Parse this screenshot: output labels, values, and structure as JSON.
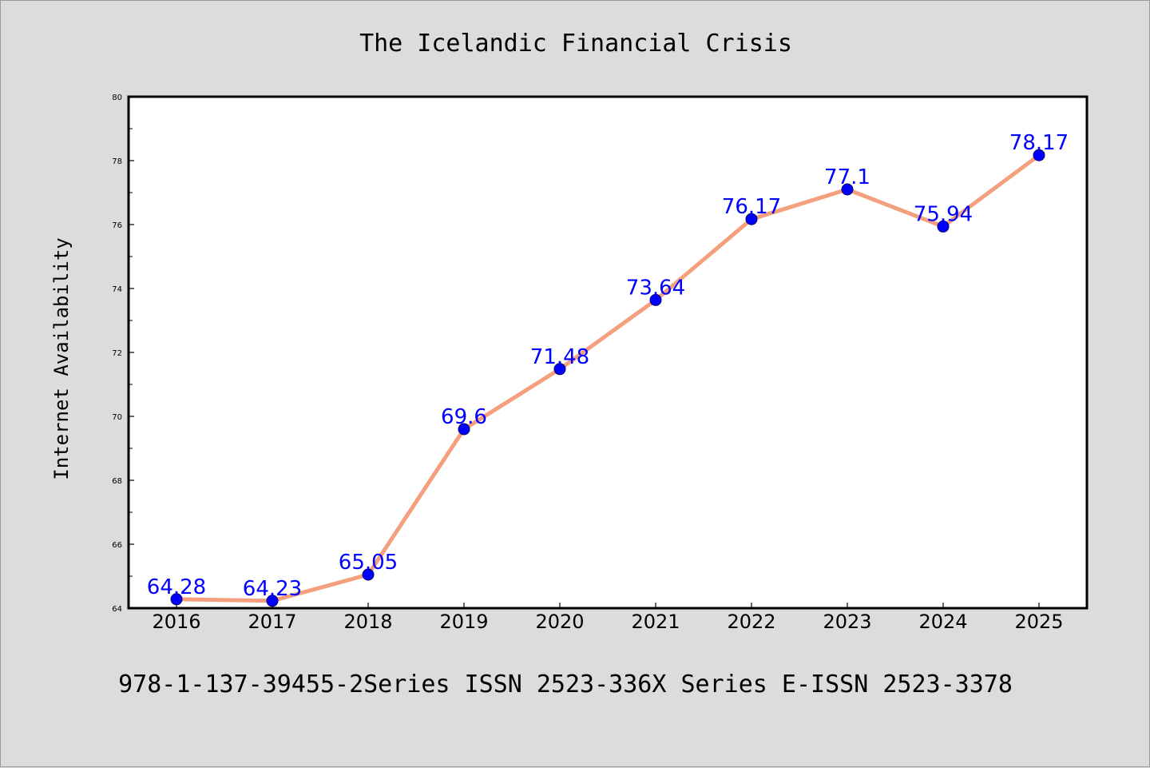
{
  "colors": {
    "background": "#dcdcdc",
    "line": "#f4a07e",
    "marker": "#0000ff",
    "data_label": "#0000ff"
  },
  "footer": "978-1-137-39455-2Series ISSN 2523-336X Series E-ISSN 2523-3378",
  "chart_data": {
    "type": "line",
    "title": "The Icelandic Financial Crisis",
    "xlabel": "",
    "ylabel": "Internet Availability",
    "categories": [
      "2016",
      "2017",
      "2018",
      "2019",
      "2020",
      "2021",
      "2022",
      "2023",
      "2024",
      "2025"
    ],
    "series": [
      {
        "values": [
          64.28,
          64.23,
          65.05,
          69.6,
          71.48,
          73.64,
          76.17,
          77.1,
          75.94,
          78.17
        ],
        "labels": [
          "64.28",
          "64.23",
          "65.05",
          "69.6",
          "71.48",
          "73.64",
          "76.17",
          "77.1",
          "75.94",
          "78.17"
        ]
      }
    ],
    "ylim": [
      64,
      80
    ],
    "yticks": [
      "64",
      "66",
      "68",
      "70",
      "72",
      "74",
      "76",
      "78",
      "80"
    ],
    "grid": false,
    "legend": "none"
  }
}
